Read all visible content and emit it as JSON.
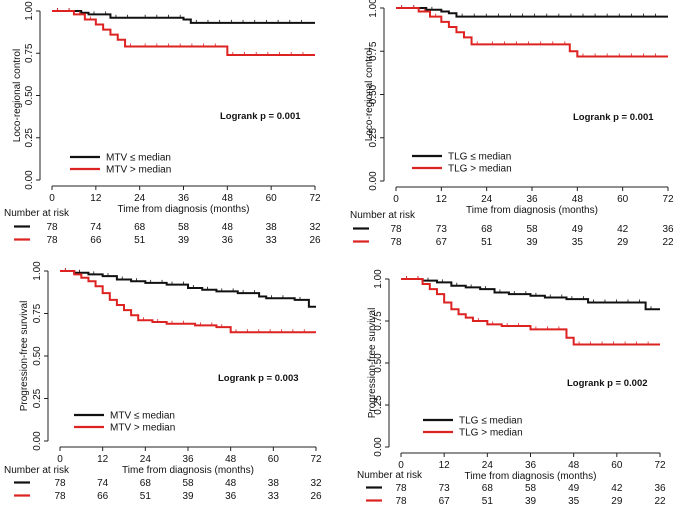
{
  "colors": {
    "low": "#111111",
    "high": "#dd2222",
    "axis": "#222222"
  },
  "chart_data": [
    {
      "type": "line",
      "step": true,
      "title": "",
      "xlabel": "Time from diagnosis (months)",
      "ylabel": "Loco-regional control",
      "xlim": [
        0,
        72
      ],
      "ylim": [
        0,
        1
      ],
      "xticks": [
        0,
        12,
        24,
        36,
        48,
        60,
        72
      ],
      "yticks": [
        "0.00",
        "0.25",
        "0.50",
        "0.75",
        "1.00"
      ],
      "pvalue": "Logrank p = 0.001",
      "series": [
        {
          "name": "MTV ≤ median",
          "color_key": "low",
          "x": [
            0,
            8,
            10,
            16,
            24,
            36,
            38,
            72
          ],
          "y": [
            1.0,
            0.99,
            0.98,
            0.96,
            0.96,
            0.95,
            0.93,
            0.93
          ]
        },
        {
          "name": "MTV > median",
          "color_key": "high",
          "x": [
            0,
            6,
            9,
            12,
            14,
            16,
            18,
            20,
            24,
            48,
            72
          ],
          "y": [
            1.0,
            0.98,
            0.95,
            0.92,
            0.89,
            0.86,
            0.83,
            0.79,
            0.79,
            0.74,
            0.74
          ]
        }
      ],
      "risk_table": {
        "title": "Number at risk",
        "rows": [
          {
            "color_key": "low",
            "values": [
              "78",
              "74",
              "68",
              "58",
              "48",
              "38",
              "32"
            ]
          },
          {
            "color_key": "high",
            "values": [
              "78",
              "66",
              "51",
              "39",
              "36",
              "33",
              "26"
            ]
          }
        ]
      }
    },
    {
      "type": "line",
      "step": true,
      "title": "",
      "xlabel": "Time from diagnosis (months)",
      "ylabel": "Loco-regional control",
      "xlim": [
        0,
        72
      ],
      "ylim": [
        0,
        1
      ],
      "xticks": [
        0,
        12,
        24,
        36,
        48,
        60,
        72
      ],
      "yticks": [
        "0.00",
        "0.25",
        "0.50",
        "0.75",
        "1.00"
      ],
      "pvalue": "Logrank p = 0.001",
      "series": [
        {
          "name": "TLG ≤ median",
          "color_key": "low",
          "x": [
            0,
            8,
            12,
            14,
            16,
            72
          ],
          "y": [
            1.0,
            0.99,
            0.98,
            0.97,
            0.95,
            0.95
          ]
        },
        {
          "name": "TLG > median",
          "color_key": "high",
          "x": [
            0,
            6,
            9,
            12,
            14,
            16,
            18,
            20,
            24,
            46,
            48,
            72
          ],
          "y": [
            1.0,
            0.98,
            0.95,
            0.92,
            0.89,
            0.86,
            0.83,
            0.79,
            0.79,
            0.75,
            0.72,
            0.72
          ]
        }
      ],
      "risk_table": {
        "title": "Number at risk",
        "rows": [
          {
            "color_key": "low",
            "values": [
              "78",
              "73",
              "68",
              "58",
              "49",
              "42",
              "36"
            ]
          },
          {
            "color_key": "high",
            "values": [
              "78",
              "67",
              "51",
              "39",
              "35",
              "29",
              "22"
            ]
          }
        ]
      }
    },
    {
      "type": "line",
      "step": true,
      "title": "",
      "xlabel": "Time from diagnosis (months)",
      "ylabel": "Progression-free survival",
      "xlim": [
        0,
        72
      ],
      "ylim": [
        0,
        1
      ],
      "xticks": [
        0,
        12,
        24,
        36,
        48,
        60,
        72
      ],
      "yticks": [
        "0.00",
        "0.25",
        "0.50",
        "0.75",
        "1.00"
      ],
      "pvalue": "Logrank p = 0.003",
      "series": [
        {
          "name": "MTV ≤ median",
          "color_key": "low",
          "x": [
            0,
            4,
            8,
            12,
            16,
            20,
            24,
            30,
            36,
            40,
            44,
            50,
            56,
            58,
            66,
            70,
            72
          ],
          "y": [
            1.0,
            0.99,
            0.98,
            0.97,
            0.95,
            0.94,
            0.93,
            0.92,
            0.9,
            0.89,
            0.88,
            0.87,
            0.85,
            0.84,
            0.83,
            0.79,
            0.79
          ]
        },
        {
          "name": "MTV > median",
          "color_key": "high",
          "x": [
            0,
            4,
            6,
            8,
            10,
            12,
            14,
            16,
            18,
            20,
            22,
            26,
            30,
            38,
            44,
            48,
            72
          ],
          "y": [
            1.0,
            0.98,
            0.96,
            0.94,
            0.91,
            0.87,
            0.83,
            0.8,
            0.77,
            0.74,
            0.71,
            0.7,
            0.69,
            0.68,
            0.67,
            0.64,
            0.64
          ]
        }
      ],
      "risk_table": {
        "title": "Number at risk",
        "rows": [
          {
            "color_key": "low",
            "values": [
              "78",
              "74",
              "68",
              "58",
              "48",
              "38",
              "32"
            ]
          },
          {
            "color_key": "high",
            "values": [
              "78",
              "66",
              "51",
              "39",
              "36",
              "33",
              "26"
            ]
          }
        ]
      }
    },
    {
      "type": "line",
      "step": true,
      "title": "",
      "xlabel": "Time from diagnosis (months)",
      "ylabel": "Progression-free survival",
      "xlim": [
        0,
        72
      ],
      "ylim": [
        0,
        1
      ],
      "xticks": [
        0,
        12,
        24,
        36,
        48,
        60,
        72
      ],
      "yticks": [
        "0.00",
        "0.25",
        "0.50",
        "0.75",
        "1.00"
      ],
      "pvalue": "Logrank p = 0.002",
      "series": [
        {
          "name": "TLG ≤ median",
          "color_key": "low",
          "x": [
            0,
            6,
            10,
            14,
            18,
            22,
            26,
            30,
            36,
            40,
            46,
            52,
            68,
            72
          ],
          "y": [
            1.0,
            0.99,
            0.98,
            0.96,
            0.95,
            0.94,
            0.92,
            0.91,
            0.9,
            0.89,
            0.88,
            0.86,
            0.82,
            0.82
          ]
        },
        {
          "name": "TLG > median",
          "color_key": "high",
          "x": [
            0,
            6,
            8,
            10,
            12,
            14,
            16,
            18,
            20,
            24,
            28,
            36,
            46,
            48,
            72
          ],
          "y": [
            1.0,
            0.97,
            0.94,
            0.91,
            0.86,
            0.82,
            0.79,
            0.77,
            0.75,
            0.73,
            0.72,
            0.7,
            0.65,
            0.61,
            0.61
          ]
        }
      ],
      "risk_table": {
        "title": "Number at risk",
        "rows": [
          {
            "color_key": "low",
            "values": [
              "78",
              "73",
              "68",
              "58",
              "49",
              "42",
              "36"
            ]
          },
          {
            "color_key": "high",
            "values": [
              "78",
              "67",
              "51",
              "39",
              "35",
              "29",
              "22"
            ]
          }
        ]
      }
    }
  ]
}
